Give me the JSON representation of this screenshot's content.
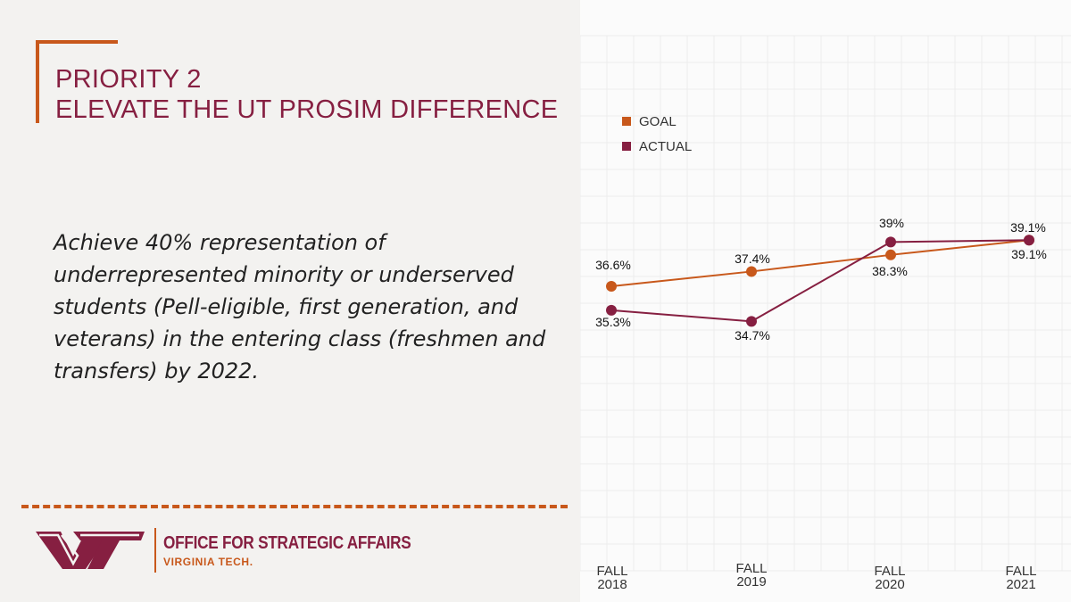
{
  "slide": {
    "title_line1": "PRIORITY 2",
    "title_line2": "ELEVATE THE UT PROSIM DIFFERENCE",
    "body": "Achieve 40% representation of underrepresented minority or underserved students (Pell-eligible, first generation, and veterans) in the entering class (freshmen and transfers) by 2022.",
    "footer_office": "OFFICE FOR STRATEGIC AFFAIRS",
    "footer_university": "VIRGINIA TECH."
  },
  "colors": {
    "maroon": "#861f41",
    "orange": "#c8581b"
  },
  "chart_data": {
    "type": "line",
    "categories": [
      [
        "FALL",
        "2018"
      ],
      [
        "FALL",
        "2019"
      ],
      [
        "FALL",
        "2020"
      ],
      [
        "FALL",
        "2021"
      ]
    ],
    "series": [
      {
        "name": "GOAL",
        "color": "#c8581b",
        "values": [
          36.6,
          37.4,
          38.3,
          39.1
        ],
        "labels": [
          "36.6%",
          "37.4%",
          "38.3%",
          "39.1%"
        ]
      },
      {
        "name": "ACTUAL",
        "color": "#861f41",
        "values": [
          35.3,
          34.7,
          39,
          39.1
        ],
        "labels": [
          "35.3%",
          "34.7%",
          "39%",
          "39.1%"
        ]
      }
    ],
    "legend": "top-left",
    "grid": true
  }
}
